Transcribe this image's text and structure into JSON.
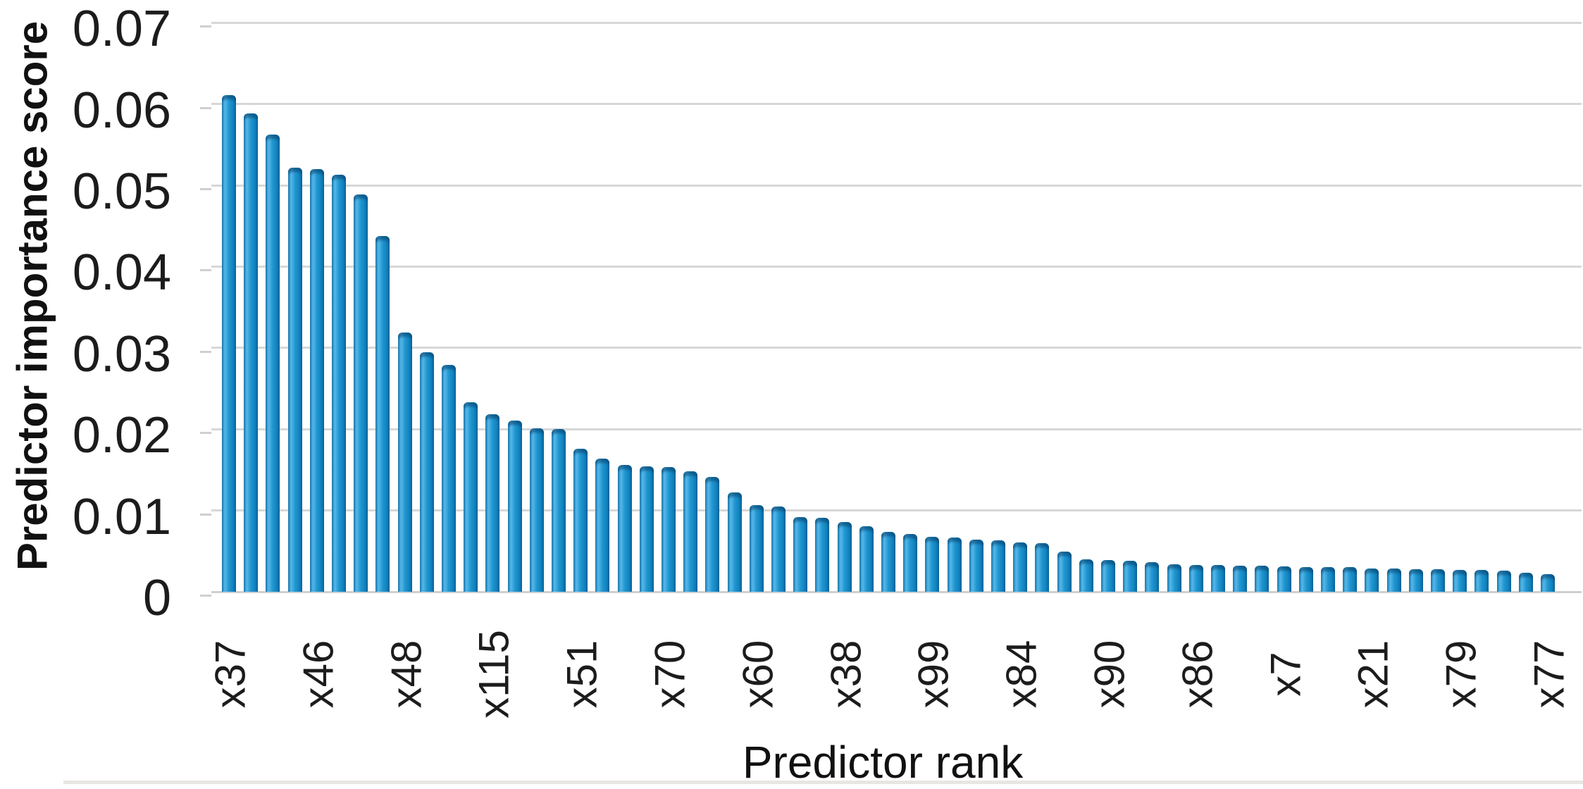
{
  "figure": {
    "background": "#ffffff",
    "bottom_border_color": "#e8e6e3"
  },
  "chart_data": {
    "type": "bar",
    "title": "",
    "xlabel": "Predictor rank",
    "ylabel": "Predictor importance score",
    "n_bars": 61,
    "values": [
      0.0611,
      0.0588,
      0.0562,
      0.0522,
      0.052,
      0.0513,
      0.0489,
      0.0438,
      0.0319,
      0.0295,
      0.0279,
      0.0233,
      0.0218,
      0.0211,
      0.0201,
      0.02,
      0.0176,
      0.0164,
      0.0156,
      0.0154,
      0.0153,
      0.0148,
      0.0141,
      0.0122,
      0.0107,
      0.0105,
      0.0092,
      0.0091,
      0.0086,
      0.0081,
      0.0074,
      0.0071,
      0.0068,
      0.0067,
      0.0064,
      0.0063,
      0.0061,
      0.006,
      0.0049,
      0.004,
      0.0039,
      0.0038,
      0.0036,
      0.0034,
      0.0033,
      0.0033,
      0.0032,
      0.0032,
      0.0031,
      0.003,
      0.003,
      0.003,
      0.0029,
      0.0029,
      0.0028,
      0.0028,
      0.0027,
      0.0027,
      0.0026,
      0.0023,
      0.0022
    ],
    "x_tick_labels": [
      "x37",
      "x46",
      "x48",
      "x115",
      "x51",
      "x70",
      "x60",
      "x38",
      "x99",
      "x84",
      "x90",
      "x86",
      "x7",
      "x21",
      "x79",
      "x77"
    ],
    "label_every_n_bars": 4,
    "x_tick_rotation_deg": -90,
    "y_ticks": [
      {
        "value": 0,
        "label": "0"
      },
      {
        "value": 0.01,
        "label": "0.01"
      },
      {
        "value": 0.02,
        "label": "0.02"
      },
      {
        "value": 0.03,
        "label": "0.03"
      },
      {
        "value": 0.04,
        "label": "0.04"
      },
      {
        "value": 0.05,
        "label": "0.05"
      },
      {
        "value": 0.06,
        "label": "0.06"
      },
      {
        "value": 0.07,
        "label": "0.07"
      }
    ],
    "ylim": [
      0,
      0.07
    ],
    "grid": "horizontal",
    "legend": "none",
    "colors": {
      "bar_edge_left": "#1e86bd",
      "bar_highlight": "#56b7e8",
      "bar_main": "#2196d0",
      "bar_shade": "#1286c2",
      "bar_edge_right": "#0d6ba3",
      "gridline": "#d7d7d7",
      "baseline": "#cfcfcf",
      "text": "#1c1c1c"
    }
  }
}
